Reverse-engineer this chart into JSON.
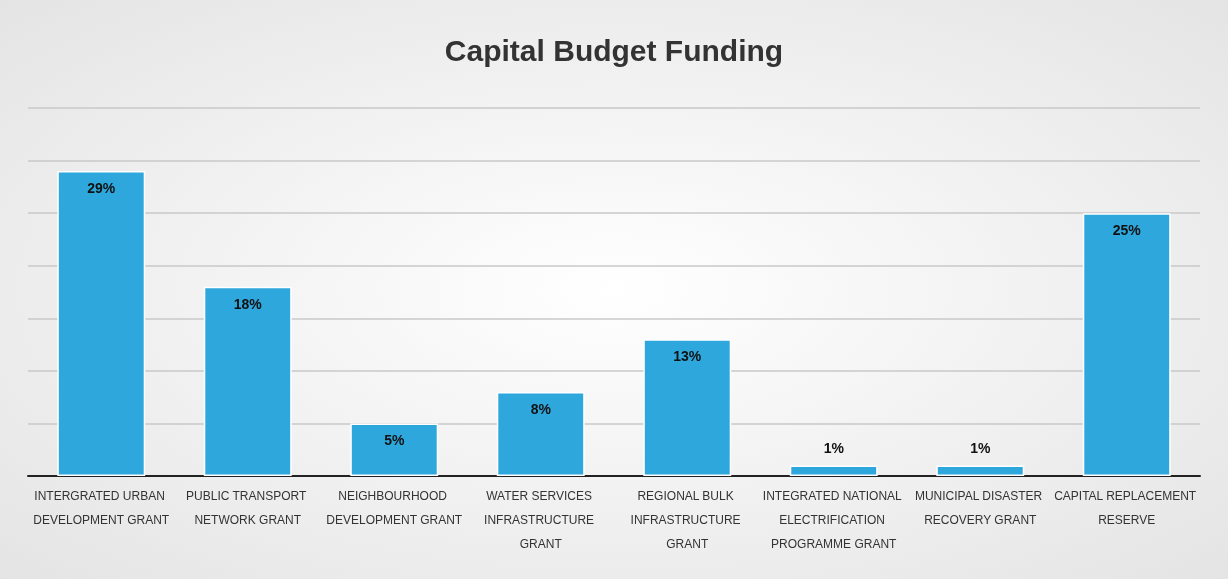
{
  "chart_data": {
    "type": "bar",
    "title": "Capital Budget Funding",
    "categories": [
      "INTERGRATED URBAN DEVELOPMENT GRANT",
      "PUBLIC TRANSPORT NETWORK GRANT",
      "NEIGHBOURHOOD DEVELOPMENT GRANT",
      "WATER SERVICES INFRASTRUCTURE GRANT",
      "REGIONAL BULK INFRASTRUCTURE GRANT",
      "INTEGRATED NATIONAL ELECTRIFICATION PROGRAMME GRANT",
      "MUNICIPAL DISASTER RECOVERY GRANT",
      "CAPITAL REPLACEMENT RESERVE"
    ],
    "values": [
      29,
      18,
      5,
      8,
      13,
      1,
      1,
      25
    ],
    "value_labels": [
      "29%",
      "18%",
      "5%",
      "8%",
      "13%",
      "1%",
      "1%",
      "25%"
    ],
    "color": "#2ea7dc",
    "ylim": [
      0,
      35
    ],
    "yticks": [
      {
        "value": 0,
        "label": null
      },
      {
        "value": 5,
        "label": null
      },
      {
        "value": 10,
        "label": null
      },
      {
        "value": 15,
        "label": null
      },
      {
        "value": 20,
        "label": null
      },
      {
        "value": 25,
        "label": null
      },
      {
        "value": 30,
        "label": null
      },
      {
        "value": 35,
        "label": null
      }
    ],
    "grid": "y",
    "tick_labels": "x"
  }
}
